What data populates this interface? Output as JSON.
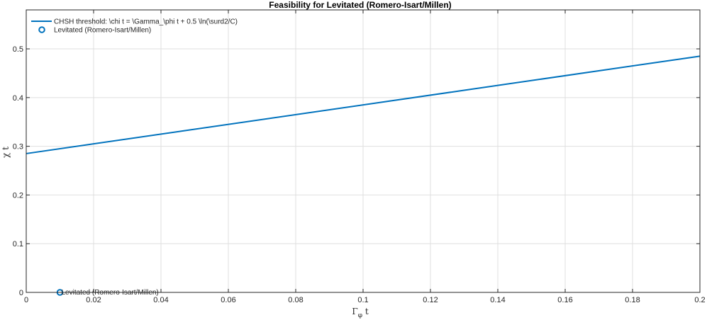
{
  "chart_data": {
    "type": "line",
    "title": "Feasibility for Levitated (Romero-Isart/Millen)",
    "xlabel": {
      "main": "Γ",
      "sub": "φ",
      "suffix": " t"
    },
    "ylabel": "χ t",
    "xlim": [
      0,
      0.2
    ],
    "ylim": [
      0,
      0.58
    ],
    "xticks": [
      0,
      0.02,
      0.04,
      0.06,
      0.08,
      0.1,
      0.12,
      0.14,
      0.16,
      0.18,
      0.2
    ],
    "xtick_labels": [
      "0",
      "0.02",
      "0.04",
      "0.06",
      "0.08",
      "0.1",
      "0.12",
      "0.14",
      "0.16",
      "0.18",
      "0.2"
    ],
    "yticks": [
      0,
      0.1,
      0.2,
      0.3,
      0.4,
      0.5
    ],
    "ytick_labels": [
      "0",
      "0.1",
      "0.2",
      "0.3",
      "0.4",
      "0.5"
    ],
    "grid": true,
    "legend_position": "top-left",
    "series": [
      {
        "name": "CHSH threshold: \\chi t = \\Gamma_\\phi t + 0.5 \\ln(\\surd2/C)",
        "kind": "line",
        "color": "#0072bd",
        "x": [
          0,
          0.2
        ],
        "y": [
          0.285,
          0.485
        ]
      },
      {
        "name": "Levitated (Romero-Isart/Millen)",
        "kind": "scatter",
        "marker": "circle-open",
        "color": "#0072bd",
        "x": [
          0.01
        ],
        "y": [
          0
        ]
      }
    ],
    "annotations": [
      {
        "text": "Levitated (Romero-Isart/Millen)",
        "x": 0.01,
        "y": 0
      }
    ]
  }
}
